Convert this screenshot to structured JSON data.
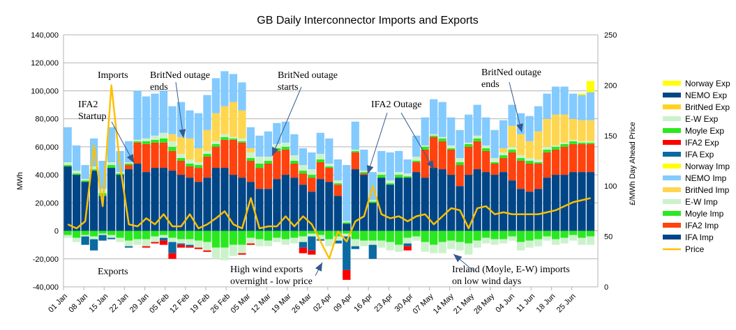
{
  "chart_data": {
    "type": "bar",
    "stacked": true,
    "title": "GB Daily Interconnector Imports and Exports",
    "ylabel": "MWh",
    "y2label": "£/MWh Day Ahead Price",
    "ylim": [
      -40000,
      140000
    ],
    "y2lim": [
      0,
      250
    ],
    "yticks": [
      "-40,000",
      "-20,000",
      "0",
      "20,000",
      "40,000",
      "60,000",
      "80,000",
      "100,000",
      "120,000",
      "140,000"
    ],
    "y2ticks": [
      "0",
      "50",
      "100",
      "150",
      "200",
      "250"
    ],
    "xticks": [
      "01 Jan",
      "08 Jan",
      "15 Jan",
      "22 Jan",
      "29 Jan",
      "05 Feb",
      "12 Feb",
      "19 Feb",
      "26 Feb",
      "05 Mar",
      "12 Mar",
      "19 Mar",
      "26 Mar",
      "02 Apr",
      "09 Apr",
      "16 Apr",
      "23 Apr",
      "30 Apr",
      "07 May",
      "14 May",
      "21 May",
      "28 May",
      "04 Jun",
      "11 Jun",
      "18 Jun",
      "25 Jun"
    ],
    "bin_days": 3,
    "value_unit": "thousand MWh",
    "legend_position": "right",
    "legend": [
      {
        "name": "Norway Exp",
        "color": "#ffff00"
      },
      {
        "name": "NEMO Exp",
        "color": "#004586"
      },
      {
        "name": "BritNed Exp",
        "color": "#ffd320"
      },
      {
        "name": "E-W Exp",
        "color": "#ccf2cc"
      },
      {
        "name": "Moyle Exp",
        "color": "#2ae81f"
      },
      {
        "name": "IFA2 Exp",
        "color": "#ff0000"
      },
      {
        "name": "IFA Exp",
        "color": "#0a6aa1"
      },
      {
        "name": "Norway Imp",
        "color": "#ffff00"
      },
      {
        "name": "NEMO Imp",
        "color": "#83caff"
      },
      {
        "name": "BritNed Imp",
        "color": "#ffd64f"
      },
      {
        "name": "E-W Imp",
        "color": "#ccf2cc"
      },
      {
        "name": "Moyle Imp",
        "color": "#2ae81f"
      },
      {
        "name": "IFA2 Imp",
        "color": "#ff420e"
      },
      {
        "name": "IFA Imp",
        "color": "#004586"
      },
      {
        "name": "Price",
        "color": "#ffc000",
        "line": true
      }
    ],
    "imports": [
      {
        "name": "IFA Imp",
        "color": "#004586",
        "values": [
          46,
          40,
          35,
          43,
          25,
          45,
          40,
          44,
          48,
          42,
          45,
          45,
          43,
          40,
          38,
          35,
          38,
          45,
          45,
          40,
          38,
          35,
          30,
          30,
          37,
          40,
          38,
          33,
          28,
          37,
          35,
          25,
          5,
          44,
          40,
          20,
          38,
          33,
          38,
          38,
          42,
          38,
          45,
          44,
          40,
          32,
          40,
          44,
          42,
          40,
          42,
          36,
          30,
          28,
          30,
          38,
          40,
          40,
          42,
          42,
          42
        ]
      },
      {
        "name": "IFA2 Imp",
        "color": "#ff420e",
        "values": [
          0,
          0,
          0,
          0,
          0,
          0,
          0,
          3,
          15,
          20,
          18,
          18,
          14,
          10,
          8,
          10,
          15,
          15,
          20,
          25,
          25,
          15,
          15,
          18,
          20,
          18,
          10,
          8,
          10,
          12,
          10,
          8,
          0,
          12,
          1,
          0,
          0,
          0,
          0,
          0,
          7,
          20,
          22,
          20,
          18,
          15,
          20,
          20,
          15,
          8,
          10,
          20,
          20,
          20,
          18,
          18,
          18,
          20,
          20,
          20,
          20
        ]
      },
      {
        "name": "Moyle Imp",
        "color": "#2ae81f",
        "values": [
          1,
          1,
          1,
          1,
          2,
          2,
          1,
          1,
          1,
          2,
          2,
          3,
          3,
          2,
          2,
          2,
          2,
          2,
          2,
          1,
          1,
          2,
          3,
          2,
          2,
          2,
          2,
          2,
          2,
          2,
          1,
          1,
          1,
          1,
          1,
          1,
          2,
          1,
          2,
          1,
          1,
          2,
          1,
          2,
          1,
          2,
          2,
          2,
          2,
          1,
          2,
          2,
          2,
          2,
          1,
          2,
          2,
          2,
          2,
          1,
          1
        ]
      },
      {
        "name": "E-W Imp",
        "color": "#ccf2cc",
        "values": [
          2,
          2,
          1,
          2,
          3,
          2,
          1,
          1,
          1,
          2,
          3,
          4,
          4,
          3,
          3,
          2,
          2,
          2,
          2,
          1,
          2,
          4,
          5,
          3,
          3,
          3,
          4,
          4,
          4,
          4,
          2,
          2,
          1,
          1,
          1,
          1,
          2,
          2,
          2,
          2,
          3,
          1,
          1,
          1,
          2,
          3,
          1,
          2,
          2,
          3,
          2,
          2,
          2,
          2,
          2,
          2,
          1,
          1,
          1,
          1,
          1
        ]
      },
      {
        "name": "BritNed Imp",
        "color": "#ffd64f",
        "values": [
          0,
          0,
          0,
          0,
          0,
          0,
          0,
          0,
          0,
          0,
          0,
          0,
          5,
          12,
          15,
          10,
          15,
          20,
          20,
          25,
          20,
          3,
          0,
          0,
          0,
          0,
          0,
          0,
          0,
          0,
          0,
          0,
          0,
          0,
          0,
          0,
          0,
          0,
          0,
          0,
          0,
          0,
          0,
          0,
          0,
          0,
          0,
          0,
          0,
          0,
          3,
          15,
          15,
          12,
          20,
          20,
          22,
          20,
          15,
          15,
          15
        ]
      },
      {
        "name": "NEMO Imp",
        "color": "#83caff",
        "values": [
          25,
          18,
          10,
          20,
          20,
          25,
          15,
          15,
          35,
          30,
          30,
          30,
          20,
          25,
          20,
          25,
          25,
          25,
          25,
          20,
          20,
          15,
          15,
          18,
          15,
          15,
          15,
          12,
          12,
          15,
          18,
          15,
          40,
          20,
          15,
          20,
          15,
          20,
          15,
          10,
          15,
          20,
          25,
          25,
          20,
          20,
          20,
          22,
          20,
          20,
          20,
          15,
          15,
          18,
          18,
          18,
          20,
          20,
          18,
          18,
          20
        ]
      },
      {
        "name": "Norway Imp",
        "color": "#ffff00",
        "values": [
          0,
          0,
          0,
          0,
          0,
          0,
          0,
          0,
          0,
          0,
          0,
          0,
          0,
          0,
          0,
          0,
          0,
          0,
          0,
          0,
          0,
          0,
          0,
          0,
          0,
          0,
          0,
          0,
          0,
          0,
          0,
          0,
          0,
          0,
          0,
          0,
          0,
          0,
          0,
          0,
          0,
          0,
          0,
          0,
          0,
          0,
          0,
          0,
          0,
          0,
          0,
          0,
          0,
          0,
          0,
          0,
          0,
          0,
          0,
          1,
          8
        ]
      }
    ],
    "exports": [
      {
        "name": "Moyle Exp",
        "color": "#2ae81f",
        "values": [
          3,
          5,
          3,
          4,
          2,
          3,
          5,
          7,
          6,
          6,
          4,
          3,
          5,
          6,
          6,
          7,
          8,
          12,
          12,
          10,
          10,
          5,
          6,
          7,
          5,
          6,
          5,
          4,
          2,
          3,
          6,
          4,
          2,
          6,
          7,
          7,
          7,
          8,
          10,
          5,
          4,
          8,
          10,
          8,
          7,
          8,
          9,
          7,
          5,
          6,
          6,
          4,
          8,
          7,
          6,
          4,
          6,
          5,
          3,
          5,
          4
        ]
      },
      {
        "name": "E-W Exp",
        "color": "#ccf2cc",
        "values": [
          2,
          3,
          1,
          2,
          1,
          2,
          3,
          4,
          4,
          5,
          4,
          2,
          3,
          3,
          4,
          5,
          6,
          8,
          9,
          8,
          6,
          4,
          5,
          4,
          3,
          4,
          4,
          4,
          2,
          3,
          5,
          3,
          2,
          5,
          4,
          3,
          5,
          6,
          5,
          4,
          3,
          7,
          6,
          8,
          6,
          6,
          8,
          5,
          4,
          4,
          3,
          3,
          6,
          5,
          5,
          3,
          4,
          4,
          4,
          5,
          6
        ]
      },
      {
        "name": "IFA Exp",
        "color": "#0a6aa1",
        "values": [
          0,
          0,
          6,
          8,
          4,
          1,
          0,
          1,
          0,
          0,
          0,
          2,
          8,
          1,
          1,
          0,
          0,
          0,
          0,
          0,
          0,
          0,
          0,
          0,
          0,
          0,
          0,
          4,
          10,
          1,
          0,
          2,
          24,
          2,
          0,
          10,
          0,
          0,
          0,
          2,
          0,
          0,
          0,
          0,
          0,
          0,
          0,
          0,
          0,
          0,
          0,
          0,
          0,
          0,
          0,
          0,
          0,
          0,
          0,
          0,
          0
        ]
      },
      {
        "name": "IFA2 Exp",
        "color": "#ff0000",
        "values": [
          0,
          0,
          0,
          0,
          0,
          0,
          0,
          0,
          0,
          1,
          1,
          3,
          4,
          2,
          1,
          1,
          1,
          0,
          0,
          0,
          1,
          1,
          0,
          0,
          0,
          0,
          0,
          4,
          3,
          0,
          0,
          0,
          7,
          0,
          0,
          0,
          0,
          0,
          0,
          3,
          0,
          0,
          0,
          0,
          0,
          0,
          0,
          0,
          0,
          0,
          0,
          0,
          0,
          0,
          0,
          0,
          0,
          0,
          0,
          0,
          0
        ]
      }
    ],
    "price": [
      62,
      58,
      65,
      140,
      80,
      200,
      120,
      62,
      60,
      68,
      62,
      72,
      60,
      60,
      72,
      58,
      62,
      68,
      75,
      62,
      58,
      88,
      58,
      60,
      60,
      70,
      60,
      70,
      62,
      45,
      28,
      55,
      45,
      65,
      70,
      100,
      72,
      68,
      70,
      65,
      70,
      72,
      62,
      70,
      78,
      76,
      58,
      78,
      80,
      72,
      74,
      72,
      72,
      72,
      72,
      74,
      76,
      80,
      84,
      86,
      88
    ],
    "annotations": [
      {
        "lines": [
          "Imports"
        ]
      },
      {
        "lines": [
          "IFA2",
          "Startup"
        ]
      },
      {
        "lines": [
          "BritNed outage",
          "ends"
        ]
      },
      {
        "lines": [
          "BritNed outage",
          "starts"
        ]
      },
      {
        "lines": [
          "IFA2 Outage"
        ]
      },
      {
        "lines": [
          "BritNed outage",
          "ends"
        ]
      },
      {
        "lines": [
          "Exports"
        ]
      },
      {
        "lines": [
          "High wind exports",
          "overnight - low price"
        ]
      },
      {
        "lines": [
          "Ireland (Moyle, E-W) imports",
          "on low wind days"
        ]
      }
    ]
  }
}
